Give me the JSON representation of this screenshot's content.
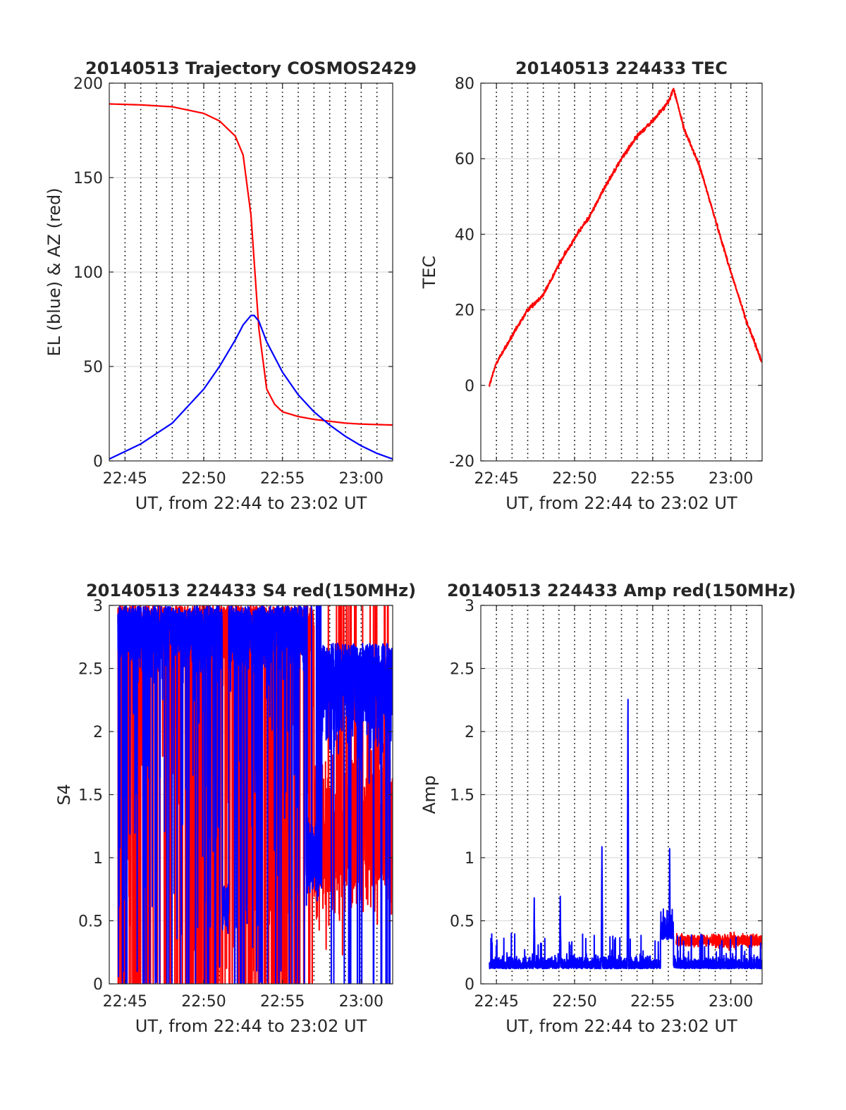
{
  "figure": {
    "xtick_labels": [
      "22:45",
      "22:50",
      "22:55",
      "23:00"
    ],
    "colors": {
      "red": "#ff0000",
      "blue": "#0000ff",
      "axis": "#262626",
      "grid": "#dcdcdc",
      "vline": "#000000"
    }
  },
  "chart_data": [
    {
      "id": "traj",
      "type": "line",
      "title": "20140513 Trajectory COSMOS2429",
      "xlabel": "UT, from 22:44 to 23:02 UT",
      "ylabel": "EL (blue) & AZ (red)",
      "xlim": [
        "22:44",
        "23:02"
      ],
      "ylim": [
        0,
        200
      ],
      "yticks": [
        0,
        50,
        100,
        150,
        200
      ],
      "grid": "horizontal",
      "vertical_markers": "dotted black line every minute from 22:45 to 23:01",
      "series": [
        {
          "name": "AZ (red)",
          "color": "#ff0000",
          "x": [
            "22:44",
            "22:46",
            "22:48",
            "22:50",
            "22:51",
            "22:52",
            "22:52:30",
            "22:53",
            "22:53:15",
            "22:53:30",
            "22:54",
            "22:54:30",
            "22:55",
            "22:56",
            "22:57",
            "22:58",
            "22:59",
            "23:00",
            "23:02"
          ],
          "y": [
            189,
            188.5,
            187.5,
            184,
            180,
            172,
            162,
            130,
            100,
            70,
            38,
            30,
            26,
            23.5,
            22,
            21,
            20,
            19.5,
            19
          ]
        },
        {
          "name": "EL (blue)",
          "color": "#0000ff",
          "x": [
            "22:44",
            "22:46",
            "22:48",
            "22:50",
            "22:51",
            "22:52",
            "22:52:30",
            "22:53",
            "22:53:12",
            "22:53:30",
            "22:54",
            "22:55",
            "22:56",
            "22:57",
            "22:58",
            "22:59",
            "23:00",
            "23:01",
            "23:02"
          ],
          "y": [
            1,
            9,
            20,
            38,
            50,
            64,
            72,
            77,
            77,
            74,
            63,
            47,
            35,
            26,
            19,
            13,
            8,
            4,
            1
          ]
        }
      ]
    },
    {
      "id": "tec",
      "type": "line",
      "title": "20140513 224433 TEC",
      "xlabel": "UT, from 22:44 to 23:02 UT",
      "ylabel": "TEC",
      "xlim": [
        "22:44",
        "23:02"
      ],
      "ylim": [
        -20,
        80
      ],
      "yticks": [
        -20,
        0,
        20,
        40,
        60,
        80
      ],
      "grid": "horizontal",
      "vertical_markers": "dotted black line every minute from 22:45 to 23:01",
      "series": [
        {
          "color": "#ff0000",
          "x": [
            "22:44:33",
            "22:45",
            "22:46",
            "22:47",
            "22:48",
            "22:49",
            "22:50",
            "22:51",
            "22:52",
            "22:53",
            "22:54",
            "22:55",
            "22:56",
            "22:56:20",
            "22:57",
            "22:58",
            "22:59",
            "23:00",
            "23:01",
            "23:02"
          ],
          "y": [
            0,
            6,
            13,
            20,
            24,
            32,
            39,
            45,
            53,
            60,
            66,
            70,
            75,
            78.5,
            68,
            58,
            44,
            30,
            17,
            6
          ]
        }
      ]
    },
    {
      "id": "s4",
      "type": "line",
      "title": "20140513 224433 S4 red(150MHz)",
      "xlabel": "UT, from 22:44 to 23:02 UT",
      "ylabel": "S4",
      "xlim": [
        "22:44",
        "23:02"
      ],
      "ylim": [
        0,
        3
      ],
      "yticks": [
        0,
        0.5,
        1,
        1.5,
        2,
        2.5,
        3
      ],
      "grid": "horizontal",
      "vertical_markers": "dotted black line every minute from 22:45 to 23:01",
      "description_of_series": "highly noisy S4 traces, blue mostly saturated near 3 with frequent drops to 0 before 22:55, red oscillating between 0.5 and 2 after 22:57",
      "series": [
        {
          "color": "#ff0000",
          "x_range": [
            "22:44:33",
            "23:02"
          ],
          "typical_range": [
            0,
            3
          ]
        },
        {
          "color": "#0000ff",
          "x_range": [
            "22:44:33",
            "23:02"
          ],
          "typical_range": [
            0,
            3
          ]
        }
      ]
    },
    {
      "id": "amp",
      "type": "line",
      "title": "20140513 224433 Amp red(150MHz)",
      "xlabel": "UT, from 22:44 to 23:02 UT",
      "ylabel": "Amp",
      "xlim": [
        "22:44",
        "23:02"
      ],
      "ylim": [
        0,
        3
      ],
      "yticks": [
        0,
        0.5,
        1,
        1.5,
        2,
        2.5,
        3
      ],
      "grid": "horizontal",
      "vertical_markers": "dotted black line every minute from 22:45 to 23:01",
      "series": [
        {
          "color": "#0000ff",
          "x_range": [
            "22:44:33",
            "23:02"
          ],
          "baseline": 0.12,
          "peaks": [
            {
              "x": "22:51:45",
              "y": 1.03
            },
            {
              "x": "22:53:25",
              "y": 2.25
            },
            {
              "x": "22:56:05",
              "y": 1.02
            },
            {
              "x": "22:49:05",
              "y": 0.65
            },
            {
              "x": "22:47:25",
              "y": 0.6
            }
          ]
        },
        {
          "color": "#ff0000",
          "x_range": [
            "22:56:30",
            "23:02"
          ],
          "typical_range": [
            0.25,
            0.45
          ]
        }
      ]
    }
  ]
}
